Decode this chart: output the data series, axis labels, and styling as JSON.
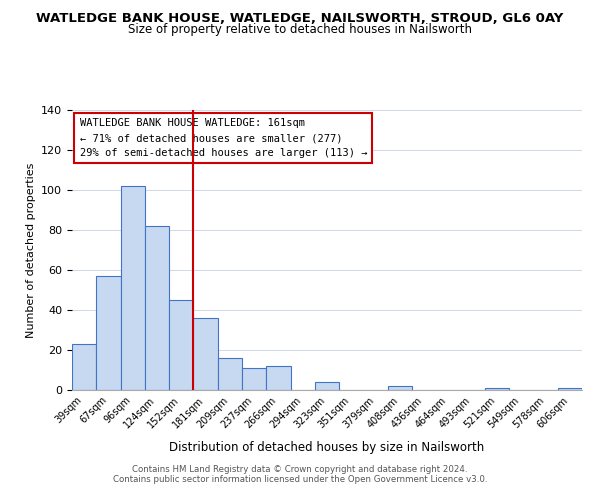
{
  "title": "WATLEDGE BANK HOUSE, WATLEDGE, NAILSWORTH, STROUD, GL6 0AY",
  "subtitle": "Size of property relative to detached houses in Nailsworth",
  "xlabel": "Distribution of detached houses by size in Nailsworth",
  "ylabel": "Number of detached properties",
  "bar_labels": [
    "39sqm",
    "67sqm",
    "96sqm",
    "124sqm",
    "152sqm",
    "181sqm",
    "209sqm",
    "237sqm",
    "266sqm",
    "294sqm",
    "323sqm",
    "351sqm",
    "379sqm",
    "408sqm",
    "436sqm",
    "464sqm",
    "493sqm",
    "521sqm",
    "549sqm",
    "578sqm",
    "606sqm"
  ],
  "bar_values": [
    23,
    57,
    102,
    82,
    45,
    36,
    16,
    11,
    12,
    0,
    4,
    0,
    0,
    2,
    0,
    0,
    0,
    1,
    0,
    0,
    1
  ],
  "bar_color": "#c6d9f0",
  "bar_edge_color": "#4472c4",
  "vline_x": 4.5,
  "vline_color": "#cc0000",
  "ylim": [
    0,
    140
  ],
  "yticks": [
    0,
    20,
    40,
    60,
    80,
    100,
    120,
    140
  ],
  "annotation_box_text": "WATLEDGE BANK HOUSE WATLEDGE: 161sqm\n← 71% of detached houses are smaller (277)\n29% of semi-detached houses are larger (113) →",
  "footer_line1": "Contains HM Land Registry data © Crown copyright and database right 2024.",
  "footer_line2": "Contains public sector information licensed under the Open Government Licence v3.0.",
  "background_color": "#ffffff",
  "grid_color": "#d0d8e8"
}
